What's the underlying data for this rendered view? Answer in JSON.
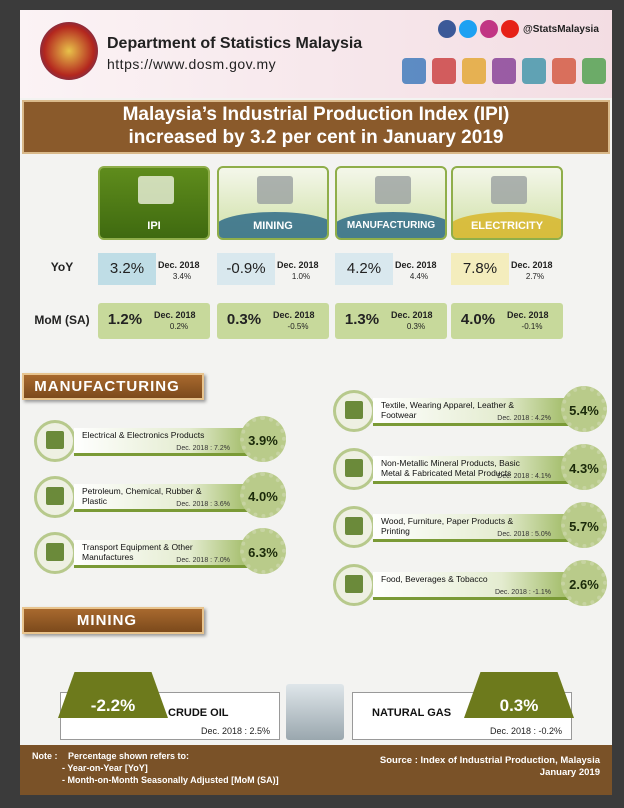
{
  "header": {
    "org": "Department of Statistics Malaysia",
    "url": "https://www.dosm.gov.my",
    "social": "@StatsMalaysia"
  },
  "title": {
    "lines": [
      "Malaysia’s Industrial Production Index (IPI)",
      "increased by 3.2 per cent in January 2019"
    ]
  },
  "summary": {
    "row_labels": [
      "YoY",
      "MoM (SA)"
    ],
    "columns": [
      {
        "name": "IPI",
        "yoy": "3.2%",
        "yoy_prev_label": "Dec. 2018",
        "yoy_prev": "3.4%",
        "mom": "1.2%",
        "mom_prev_label": "Dec. 2018",
        "mom_prev": "0.2%"
      },
      {
        "name": "MINING",
        "yoy": "-0.9%",
        "yoy_prev_label": "Dec. 2018",
        "yoy_prev": "1.0%",
        "mom": "0.3%",
        "mom_prev_label": "Dec. 2018",
        "mom_prev": "-0.5%"
      },
      {
        "name": "MANUFACTURING",
        "yoy": "4.2%",
        "yoy_prev_label": "Dec. 2018",
        "yoy_prev": "4.4%",
        "mom": "1.3%",
        "mom_prev_label": "Dec. 2018",
        "mom_prev": "0.3%"
      },
      {
        "name": "ELECTRICITY",
        "yoy": "7.8%",
        "yoy_prev_label": "Dec. 2018",
        "yoy_prev": "2.7%",
        "mom": "4.0%",
        "mom_prev_label": "Dec. 2018",
        "mom_prev": "-0.1%"
      }
    ]
  },
  "manufacturing": {
    "title": "MANUFACTURING",
    "left": [
      {
        "label": "Electrical & Electronics Products",
        "prev": "Dec. 2018 : 7.2%",
        "value": "3.9%"
      },
      {
        "label": "Petroleum, Chemical, Rubber & Plastic",
        "prev": "Dec. 2018 : 3.6%",
        "value": "4.0%"
      },
      {
        "label": "Transport Equipment & Other Manufactures",
        "prev": "Dec. 2018 : 7.0%",
        "value": "6.3%"
      }
    ],
    "right": [
      {
        "label": "Textile, Wearing Apparel, Leather & Footwear",
        "prev": "Dec. 2018 : 4.2%",
        "value": "5.4%"
      },
      {
        "label": "Non-Metallic Mineral Products, Basic Metal & Fabricated Metal Products",
        "prev": "Dec. 2018 : 4.1%",
        "value": "4.3%"
      },
      {
        "label": "Wood, Furniture, Paper Products & Printing",
        "prev": "Dec. 2018 : 5.0%",
        "value": "5.7%"
      },
      {
        "label": "Food, Beverages & Tobacco",
        "prev": "Dec. 2018 : -1.1%",
        "value": "2.6%"
      }
    ]
  },
  "mining": {
    "title": "MINING",
    "items": [
      {
        "label": "CRUDE OIL",
        "value": "-2.2%",
        "prev": "Dec. 2018 : 2.5%"
      },
      {
        "label": "NATURAL GAS",
        "value": "0.3%",
        "prev": "Dec. 2018 : -0.2%"
      }
    ]
  },
  "footer": {
    "note_label": "Note :",
    "note": "Percentage shown refers to:",
    "bullets": [
      "- Year-on-Year [YoY]",
      "- Month-on-Month  Seasonally Adjusted [MoM (SA)]"
    ],
    "source": "Source : Index of Industrial Production, Malaysia",
    "period": "January 2019"
  }
}
